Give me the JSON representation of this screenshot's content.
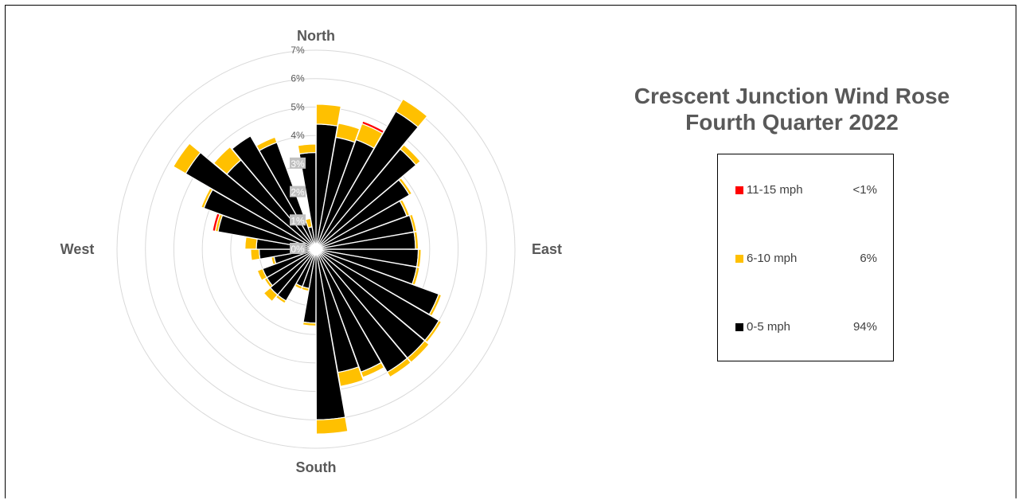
{
  "chart_data": {
    "type": "polar-stacked-bar",
    "title_lines": [
      "Crescent Junction Wind Rose",
      "Fourth Quarter 2022"
    ],
    "directions": [
      "North",
      "East",
      "South",
      "West"
    ],
    "radial_axis": {
      "ticks": [
        "0%",
        "1%",
        "2%",
        "3%",
        "4%",
        "5%",
        "6%",
        "7%"
      ],
      "max": 7
    },
    "sectors": 36,
    "series": [
      {
        "name": "0-5 mph",
        "legend_pct": "94%",
        "color": "#000000",
        "values": [
          4.4,
          4.0,
          4.1,
          5.6,
          4.6,
          3.8,
          3.4,
          3.5,
          3.5,
          3.6,
          3.6,
          4.6,
          5.0,
          5.0,
          5.0,
          4.6,
          4.4,
          6.0,
          2.6,
          1.4,
          1.4,
          2.1,
          2.1,
          2.0,
          2.0,
          1.5,
          2.0,
          2.1,
          3.5,
          4.2,
          5.3,
          4.1,
          4.6,
          4.0,
          0.8,
          3.4
        ],
        "note": "ordered clockwise from North"
      },
      {
        "name": "6-10 mph",
        "legend_pct": "6%",
        "color": "#ffc000",
        "values": [
          0.7,
          0.5,
          0.6,
          0.5,
          0.2,
          0.1,
          0.1,
          0.1,
          0.1,
          0.1,
          0.1,
          0.1,
          0.1,
          0.2,
          0.2,
          0.2,
          0.5,
          0.5,
          0.1,
          0.1,
          0.1,
          0.1,
          0.3,
          0.1,
          0.2,
          0.1,
          0.3,
          0.4,
          0.1,
          0.1,
          0.5,
          0.6,
          0.0,
          0.2,
          0.3,
          0.3
        ]
      },
      {
        "name": "11-15 mph",
        "legend_pct": "<1%",
        "color": "#ff0000",
        "values": [
          0,
          0,
          0.1,
          0,
          0,
          0,
          0,
          0,
          0,
          0,
          0,
          0,
          0,
          0,
          0,
          0,
          0,
          0,
          0,
          0,
          0,
          0,
          0,
          0,
          0,
          0,
          0,
          0,
          0.1,
          0,
          0,
          0,
          0,
          0,
          0,
          0
        ]
      }
    ],
    "legend_placement": "right",
    "grid": true
  },
  "legend": {
    "items": [
      {
        "label": "11-15 mph",
        "pct": "<1%",
        "color": "#ff0000"
      },
      {
        "label": "6-10 mph",
        "pct": "6%",
        "color": "#ffc000"
      },
      {
        "label": "0-5 mph",
        "pct": "94%",
        "color": "#000000"
      }
    ]
  }
}
